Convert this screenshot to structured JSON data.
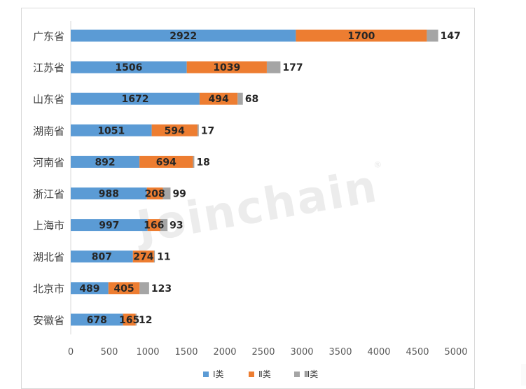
{
  "watermark": "Joinchain",
  "chart_data": {
    "type": "bar",
    "orientation": "horizontal",
    "stacked": true,
    "categories": [
      "广东省",
      "江苏省",
      "山东省",
      "湖南省",
      "河南省",
      "浙江省",
      "上海市",
      "湖北省",
      "北京市",
      "安徽省"
    ],
    "series": [
      {
        "name": "Ⅰ类",
        "color": "#5b9bd5",
        "values": [
          2922,
          1506,
          1672,
          1051,
          892,
          988,
          997,
          807,
          489,
          678
        ]
      },
      {
        "name": "Ⅱ类",
        "color": "#ed7d31",
        "values": [
          1700,
          1039,
          494,
          594,
          694,
          208,
          166,
          274,
          405,
          165
        ]
      },
      {
        "name": "Ⅲ类",
        "color": "#a5a5a5",
        "values": [
          147,
          177,
          68,
          17,
          18,
          99,
          93,
          11,
          123,
          12
        ]
      }
    ],
    "xlim": [
      0,
      5000
    ],
    "xticks": [
      0,
      500,
      1000,
      1500,
      2000,
      2500,
      3000,
      3500,
      4000,
      4500,
      5000
    ],
    "grid": false,
    "legend_position": "bottom"
  }
}
